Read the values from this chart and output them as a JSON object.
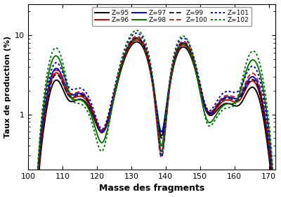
{
  "xlabel": "Masse des fragments",
  "ylabel": "Taux de production (%)",
  "xlim": [
    100,
    172
  ],
  "ylim": [
    0.2,
    25
  ],
  "xticks": [
    100,
    110,
    120,
    130,
    140,
    150,
    160,
    170
  ],
  "series": [
    {
      "label": "Z=95",
      "color": "#000000",
      "linestyle": "solid",
      "lw": 1.4
    },
    {
      "label": "Z=96",
      "color": "#cc0000",
      "linestyle": "solid",
      "lw": 1.4
    },
    {
      "label": "Z=97",
      "color": "#0000cc",
      "linestyle": "solid",
      "lw": 1.4
    },
    {
      "label": "Z=98",
      "color": "#007700",
      "linestyle": "solid",
      "lw": 1.4
    },
    {
      "label": "Z=99",
      "color": "#000000",
      "linestyle": "dashed",
      "lw": 1.2
    },
    {
      "label": "Z=100",
      "color": "#cc0000",
      "linestyle": "dashed",
      "lw": 1.2
    },
    {
      "label": "Z=101",
      "color": "#0000cc",
      "linestyle": "dotted",
      "lw": 1.4
    },
    {
      "label": "Z=102",
      "color": "#007700",
      "linestyle": "dotted",
      "lw": 1.4
    }
  ],
  "background_color": "#ffffff"
}
